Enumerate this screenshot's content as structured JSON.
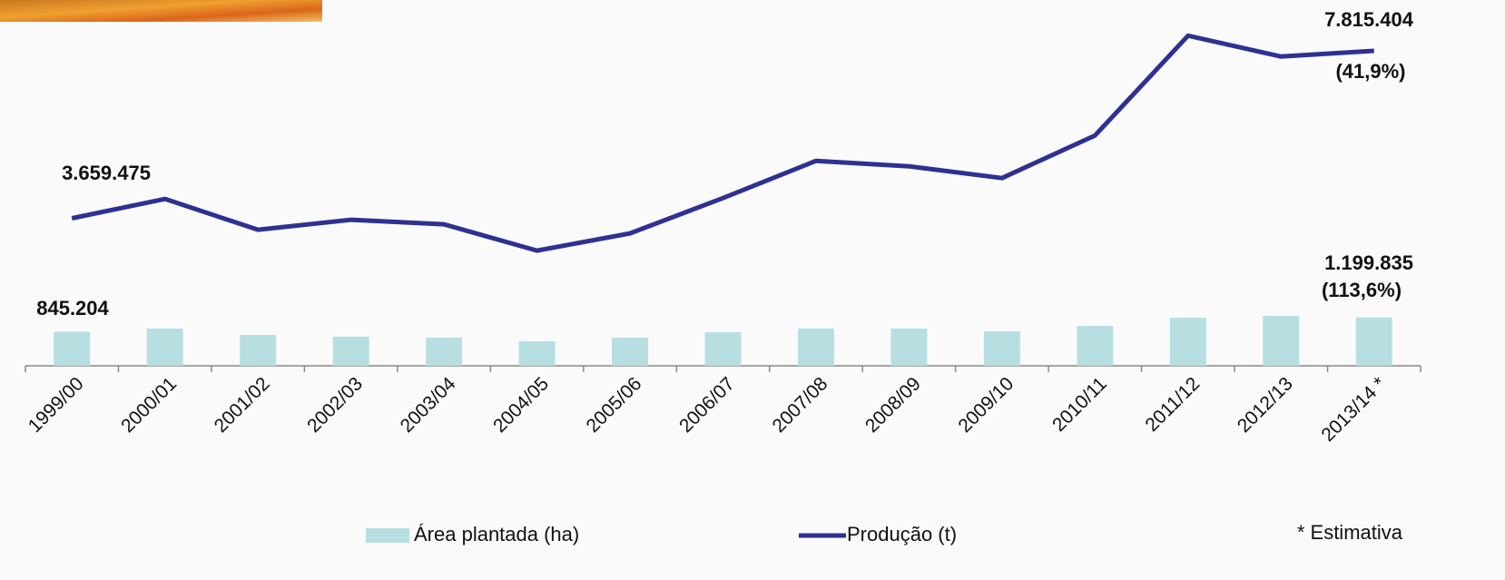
{
  "chart_data": {
    "type": "bar-line",
    "categories": [
      "1999/00",
      "2000/01",
      "2001/02",
      "2002/03",
      "2003/04",
      "2004/05",
      "2005/06",
      "2006/07",
      "2007/08",
      "2008/09",
      "2009/10",
      "2010/11",
      "2011/12",
      "2012/13",
      "2013/14 *"
    ],
    "series": [
      {
        "name": "Área plantada (ha)",
        "type": "bar",
        "color": "#b7dfe2",
        "values": [
          845204,
          922500,
          765000,
          720000,
          697500,
          607500,
          697500,
          832500,
          922500,
          922500,
          855000,
          990000,
          1192500,
          1237500,
          1199835
        ],
        "value_labels": [
          "845.204",
          null,
          null,
          null,
          null,
          null,
          null,
          null,
          null,
          null,
          null,
          null,
          null,
          null,
          "1.199.835"
        ]
      },
      {
        "name": "Produção (t)",
        "type": "line",
        "color": "#2e3192",
        "values": [
          3659475,
          4140000,
          3375000,
          3622500,
          3510000,
          2857500,
          3285000,
          4162500,
          5085000,
          4950000,
          4657500,
          5715000,
          8190000,
          7672500,
          7815404
        ],
        "value_labels": [
          "3.659.475",
          null,
          null,
          null,
          null,
          null,
          null,
          null,
          null,
          null,
          null,
          null,
          null,
          null,
          "7.815.404"
        ]
      }
    ],
    "annotations": [
      "(41,9%)",
      "(113,6%)",
      "* Estimativa"
    ],
    "ylim": [
      0,
      8400000
    ]
  }
}
